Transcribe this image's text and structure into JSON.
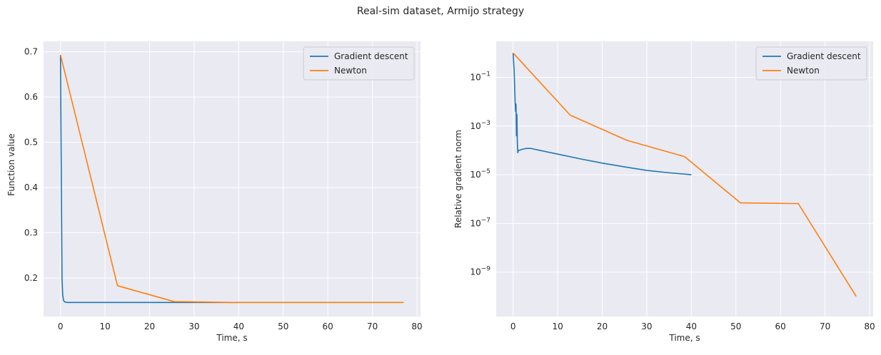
{
  "title": "Real-sim dataset, Armijo strategy",
  "colors": {
    "gradient": "#1f77b4",
    "newton": "#ff7f0e",
    "axes_bg": "#eaeaf2",
    "grid": "#ffffff"
  },
  "chart_data": [
    {
      "type": "line",
      "xlabel": "Time, s",
      "ylabel": "Function value",
      "xlim": [
        -3.8,
        80.8
      ],
      "ylim": [
        0.115,
        0.723
      ],
      "xticks": [
        0,
        10,
        20,
        30,
        40,
        50,
        60,
        70,
        80
      ],
      "yticks": [
        0.2,
        0.3,
        0.4,
        0.5,
        0.6,
        0.7
      ],
      "xtick_labels": [
        "0",
        "10",
        "20",
        "30",
        "40",
        "50",
        "60",
        "70",
        "80"
      ],
      "ytick_labels": [
        "0.2",
        "0.3",
        "0.4",
        "0.5",
        "0.6",
        "0.7"
      ],
      "legend": "top-right",
      "grid": true,
      "series": [
        {
          "name": "Gradient descent",
          "x": [
            0,
            0.2,
            0.35,
            0.5,
            0.7,
            1.0,
            1.5,
            3,
            10,
            20,
            40
          ],
          "y": [
            0.693,
            0.4,
            0.2,
            0.162,
            0.15,
            0.147,
            0.146,
            0.146,
            0.146,
            0.146,
            0.146
          ]
        },
        {
          "name": "Newton",
          "x": [
            0,
            12.8,
            25.5,
            38.5,
            51,
            64,
            77
          ],
          "y": [
            0.693,
            0.183,
            0.148,
            0.146,
            0.146,
            0.146,
            0.146
          ]
        }
      ]
    },
    {
      "type": "line",
      "yscale": "log",
      "xlabel": "Time, s",
      "ylabel": "Relative gradient norm",
      "xlim": [
        -3.8,
        80.8
      ],
      "ylim": [
        1.5e-11,
        3.0
      ],
      "xticks": [
        0,
        10,
        20,
        30,
        40,
        50,
        60,
        70,
        80
      ],
      "yticks": [
        1e-09,
        1e-07,
        1e-05,
        0.001,
        0.1
      ],
      "xtick_labels": [
        "0",
        "10",
        "20",
        "30",
        "40",
        "50",
        "60",
        "70",
        "80"
      ],
      "ytick_labels": [
        {
          "base": "10",
          "exp": "−9"
        },
        {
          "base": "10",
          "exp": "−7"
        },
        {
          "base": "10",
          "exp": "−5"
        },
        {
          "base": "10",
          "exp": "−3"
        },
        {
          "base": "10",
          "exp": "−1"
        }
      ],
      "legend": "top-right",
      "grid": true,
      "series": [
        {
          "name": "Gradient descent",
          "x": [
            0,
            0.25,
            0.45,
            0.55,
            0.65,
            0.75,
            0.85,
            0.95,
            1.05,
            1.15,
            1.4,
            2.0,
            3.0,
            4.0,
            6.0,
            10.0,
            15.0,
            20.0,
            25.0,
            30.0,
            35.0,
            40.0
          ],
          "y": [
            1.0,
            0.15,
            0.01,
            0.004,
            0.008,
            0.0004,
            0.003,
            0.0002,
            8e-05,
            0.0001,
            0.0001,
            0.00011,
            0.00012,
            0.00012,
            0.0001,
            7e-05,
            4.5e-05,
            3e-05,
            2.1e-05,
            1.5e-05,
            1.2e-05,
            1e-05
          ]
        },
        {
          "name": "Newton",
          "x": [
            0,
            12.8,
            25.5,
            38.5,
            51,
            64,
            77
          ],
          "y": [
            1.0,
            0.0028,
            0.00026,
            5.5e-05,
            7e-07,
            6.5e-07,
            1e-10
          ]
        }
      ]
    }
  ]
}
